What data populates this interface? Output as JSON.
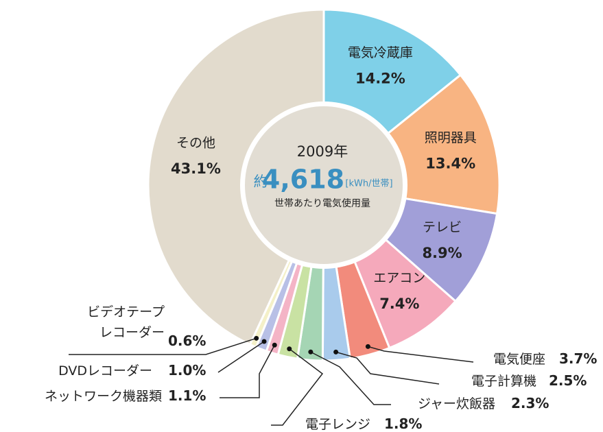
{
  "chart_data": {
    "type": "donut",
    "categories": [
      "電気冷蔵庫",
      "照明器具",
      "テレビ",
      "エアコン",
      "電気便座",
      "電子計算機",
      "ジャー炊飯器",
      "電子レンジ",
      "ネットワーク機器類",
      "DVDレコーダー",
      "ビデオテープ\nレコーダー",
      "その他"
    ],
    "values": [
      14.2,
      13.4,
      8.9,
      7.4,
      3.7,
      2.5,
      2.3,
      1.8,
      1.1,
      1.0,
      0.6,
      43.1
    ],
    "value_labels": [
      "14.2%",
      "13.4%",
      "8.9%",
      "7.4%",
      "3.7%",
      "2.5%",
      "2.3%",
      "1.8%",
      "1.1%",
      "1.0%",
      "0.6%",
      "43.1%"
    ],
    "colors": [
      "#7fd0e8",
      "#f8b482",
      "#a19fd8",
      "#f5a9bb",
      "#f28b7c",
      "#a9cbec",
      "#a5d5b4",
      "#c9e2a3",
      "#f4b4c6",
      "#b8c0e6",
      "#f4f0c8",
      "#e2dbcd"
    ],
    "center": {
      "year": "2009年",
      "prefix": "約",
      "amount": "4,618",
      "unit": "[kWh/世帯]",
      "caption": "世帯あたり電気使用量"
    }
  }
}
